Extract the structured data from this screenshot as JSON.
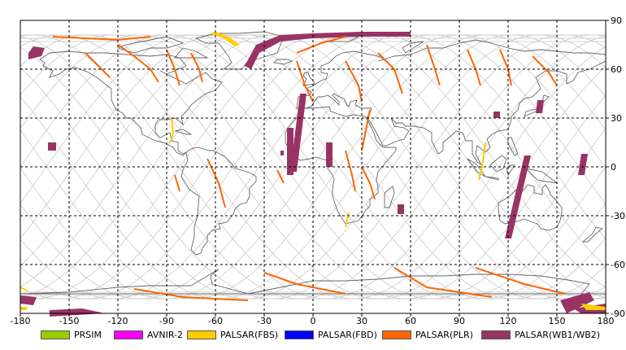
{
  "map": {
    "x_range": [
      -180,
      180
    ],
    "y_range": [
      -90,
      90
    ],
    "x_ticks": [
      "-180",
      "-150",
      "-120",
      "-90",
      "-60",
      "-30",
      "0",
      "30",
      "60",
      "90",
      "120",
      "150",
      "180"
    ],
    "y_ticks": [
      "90",
      "60",
      "30",
      "0",
      "-30",
      "-60",
      "-90"
    ],
    "grid": "dashed"
  },
  "legend": [
    {
      "label": "PRSIM",
      "color": "#99cc00"
    },
    {
      "label": "AVNIR-2",
      "color": "#ff00ff"
    },
    {
      "label": "PALSAR(FBS)",
      "color": "#ffcc00"
    },
    {
      "label": "PALSAR(FBD)",
      "color": "#0000ff"
    },
    {
      "label": "PALSAR(PLR)",
      "color": "#ff6600"
    },
    {
      "label": "PALSAR(WB1/WB2)",
      "color": "#993366"
    }
  ],
  "colors": {
    "coastline": "#666666",
    "orbit": "#c8c8c8",
    "grid": "#000000"
  }
}
